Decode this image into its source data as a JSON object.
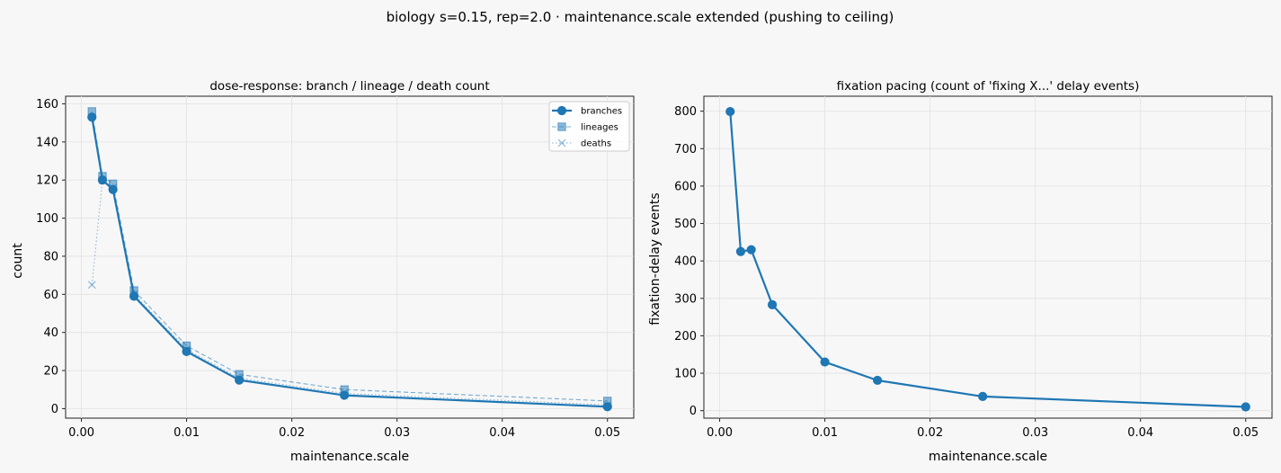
{
  "figure": {
    "suptitle": "biology s=0.15, rep=2.0 · maintenance.scale extended (pushing to ceiling)",
    "background": "#f7f7f7",
    "accent": "#1f77b4"
  },
  "chart_data": [
    {
      "type": "line",
      "title": "dose-response: branch / lineage / death count",
      "xlabel": "maintenance.scale",
      "ylabel": "count",
      "xlim": [
        -0.0015,
        0.0525
      ],
      "ylim": [
        -5,
        164
      ],
      "xticks": [
        0.0,
        0.01,
        0.02,
        0.03,
        0.04,
        0.05
      ],
      "xtick_labels": [
        "0.00",
        "0.01",
        "0.02",
        "0.03",
        "0.04",
        "0.05"
      ],
      "yticks": [
        0,
        20,
        40,
        60,
        80,
        100,
        120,
        140,
        160
      ],
      "grid": true,
      "legend": "top-right",
      "x": [
        0.001,
        0.002,
        0.003,
        0.005,
        0.01,
        0.015,
        0.025,
        0.05
      ],
      "series": [
        {
          "name": "branches",
          "values": [
            153,
            120,
            115,
            59,
            30,
            15,
            7,
            1
          ],
          "color": "#1f77b4",
          "marker": "circle",
          "linestyle": "solid"
        },
        {
          "name": "lineages",
          "values": [
            156,
            122,
            118,
            62,
            33,
            18,
            10,
            4
          ],
          "color": "#1f77b4",
          "marker": "square",
          "linestyle": "dashed"
        },
        {
          "name": "deaths",
          "values": [
            65,
            120,
            116,
            60,
            31,
            16,
            8,
            2
          ],
          "color": "#1f77b4",
          "marker": "x",
          "linestyle": "dotted"
        }
      ]
    },
    {
      "type": "line",
      "title": "fixation pacing (count of 'fixing X...' delay events)",
      "xlabel": "maintenance.scale",
      "ylabel": "fixation-delay events",
      "xlim": [
        -0.0015,
        0.0525
      ],
      "ylim": [
        -20,
        840
      ],
      "xticks": [
        0.0,
        0.01,
        0.02,
        0.03,
        0.04,
        0.05
      ],
      "xtick_labels": [
        "0.00",
        "0.01",
        "0.02",
        "0.03",
        "0.04",
        "0.05"
      ],
      "yticks": [
        0,
        100,
        200,
        300,
        400,
        500,
        600,
        700,
        800
      ],
      "grid": true,
      "x": [
        0.001,
        0.002,
        0.003,
        0.005,
        0.01,
        0.015,
        0.025,
        0.05
      ],
      "series": [
        {
          "values": [
            799,
            425,
            430,
            283,
            130,
            81,
            38,
            10
          ],
          "color": "#1f77b4",
          "marker": "circle",
          "linestyle": "solid"
        }
      ]
    }
  ]
}
